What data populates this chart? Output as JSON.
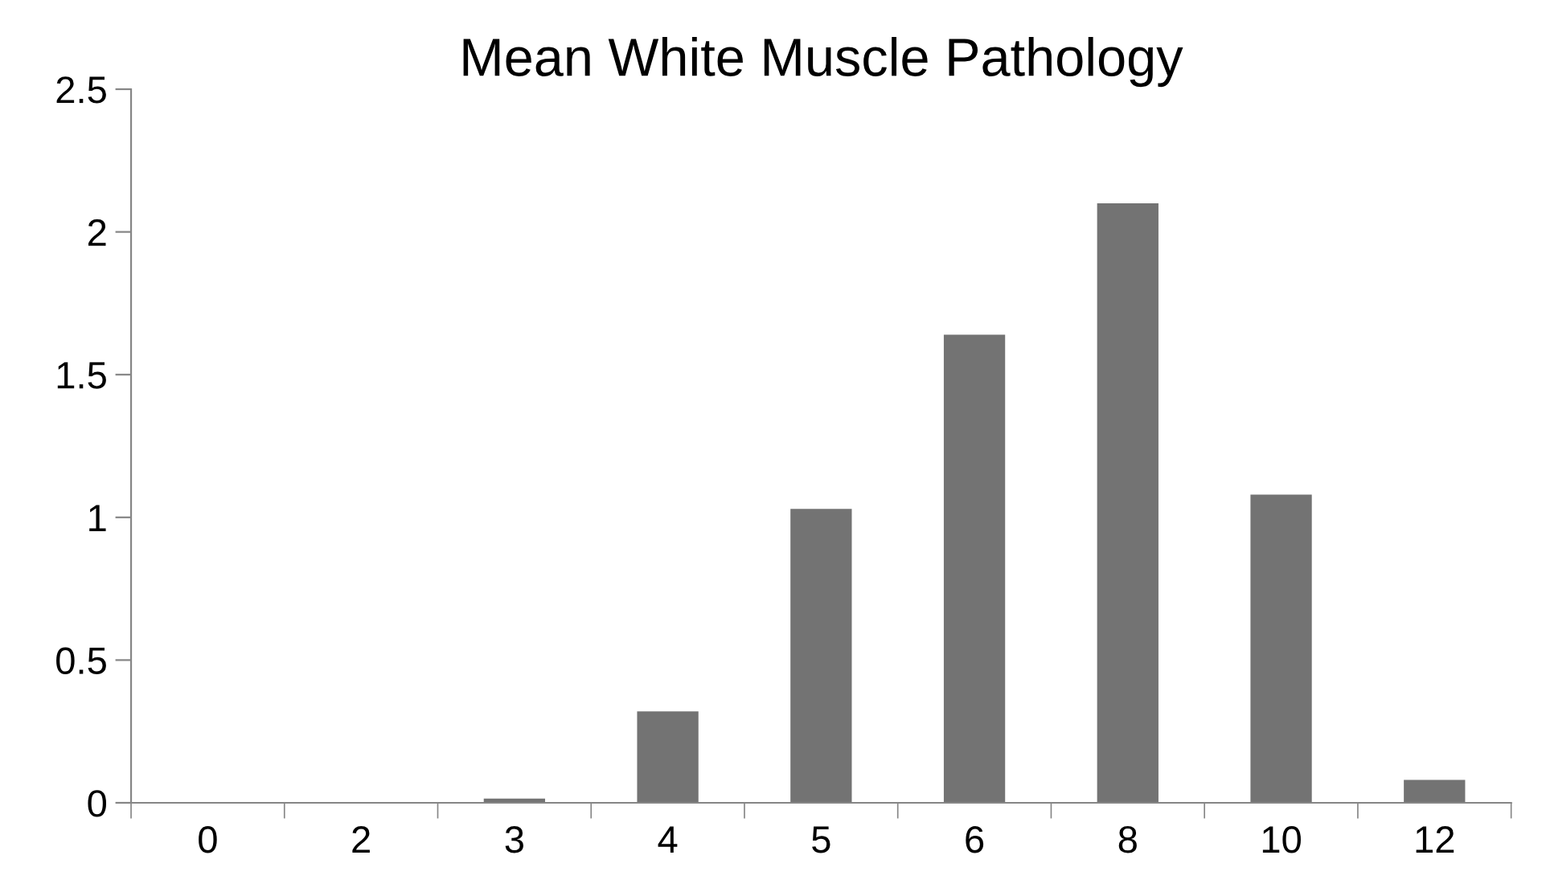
{
  "chart_data": {
    "type": "bar",
    "title": "Mean White Muscle Pathology",
    "categories": [
      "0",
      "2",
      "3",
      "4",
      "5",
      "6",
      "8",
      "10",
      "12"
    ],
    "values": [
      0,
      0,
      0.015,
      0.32,
      1.03,
      1.64,
      2.1,
      1.08,
      0.08
    ],
    "color": "#737373",
    "ylim": [
      0,
      2.5
    ],
    "yticks": [
      0,
      0.5,
      1,
      1.5,
      2,
      2.5
    ],
    "grid": false,
    "legend": false
  }
}
